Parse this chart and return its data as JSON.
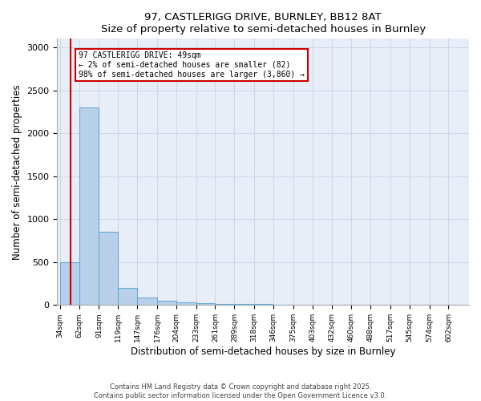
{
  "title": "97, CASTLERIGG DRIVE, BURNLEY, BB12 8AT",
  "subtitle": "Size of property relative to semi-detached houses in Burnley",
  "xlabel": "Distribution of semi-detached houses by size in Burnley",
  "ylabel": "Number of semi-detached properties",
  "bin_edges": [
    34,
    62,
    91,
    119,
    147,
    176,
    204,
    233,
    261,
    289,
    318,
    346,
    375,
    403,
    432,
    460,
    488,
    517,
    545,
    574,
    602
  ],
  "bar_heights": [
    500,
    2300,
    850,
    200,
    90,
    50,
    30,
    20,
    15,
    10,
    8,
    5,
    5,
    3,
    3,
    2,
    2,
    1,
    1,
    1,
    1
  ],
  "bar_color": "#b8d0ea",
  "bar_edge_color": "#6aaad4",
  "property_size": 49,
  "red_line_color": "#cc0000",
  "annotation_text": "97 CASTLERIGG DRIVE: 49sqm\n← 2% of semi-detached houses are smaller (82)\n98% of semi-detached houses are larger (3,860) →",
  "ylim": [
    0,
    3100
  ],
  "yticks": [
    0,
    500,
    1000,
    1500,
    2000,
    2500,
    3000
  ],
  "background_color": "#e8eef8",
  "grid_color": "#d0d8e8",
  "footer_line1": "Contains HM Land Registry data © Crown copyright and database right 2025.",
  "footer_line2": "Contains public sector information licensed under the Open Government Licence v3.0."
}
